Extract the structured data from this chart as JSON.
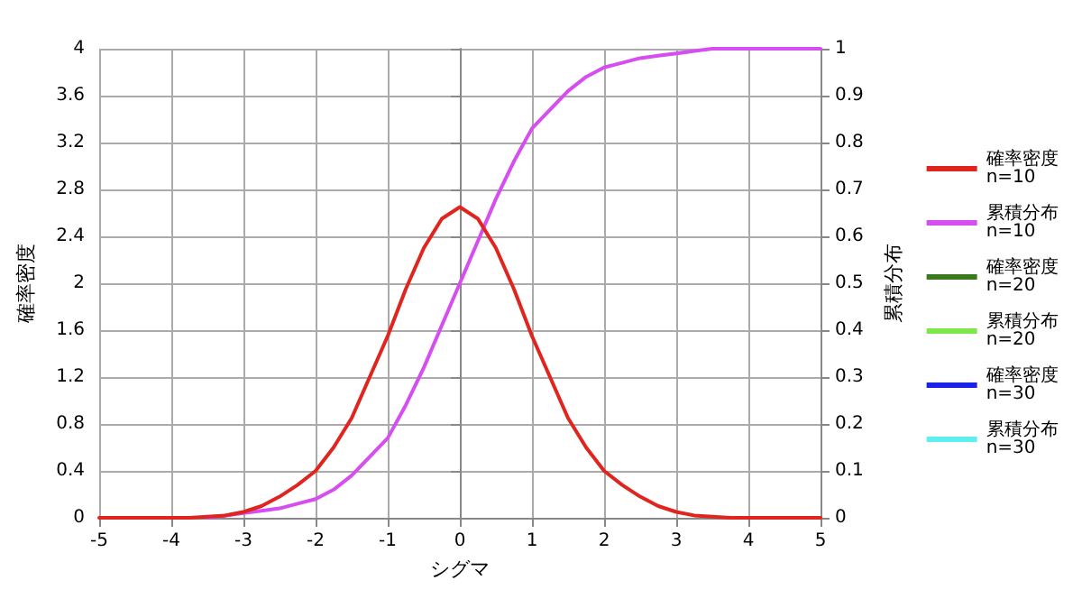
{
  "chart_data": {
    "type": "line",
    "xlabel": "シグマ",
    "ylabel": "確率密度",
    "y2label": "累積分布",
    "x": [
      -5,
      -4.75,
      -4.5,
      -4.25,
      -4,
      -3.75,
      -3.5,
      -3.25,
      -3,
      -2.75,
      -2.5,
      -2.25,
      -2,
      -1.75,
      -1.5,
      -1.25,
      -1,
      -0.75,
      -0.5,
      -0.25,
      0,
      0.25,
      0.5,
      0.75,
      1,
      1.25,
      1.5,
      1.75,
      2,
      2.25,
      2.5,
      2.75,
      3,
      3.25,
      3.5,
      3.75,
      4,
      4.25,
      4.5,
      4.75,
      5
    ],
    "series": [
      {
        "name": "確率密度 n=10",
        "color": "#e0251f",
        "values": [
          0,
          0,
          0,
          0,
          0,
          0,
          0.01,
          0.02,
          0.05,
          0.1,
          0.18,
          0.28,
          0.4,
          0.6,
          0.85,
          1.2,
          1.55,
          1.95,
          2.3,
          2.55,
          2.65,
          2.55,
          2.3,
          1.95,
          1.55,
          1.2,
          0.85,
          0.6,
          0.4,
          0.28,
          0.18,
          0.1,
          0.05,
          0.02,
          0.01,
          0,
          0,
          0,
          0,
          0,
          0
        ]
      },
      {
        "name": "累積分布 n=10",
        "color": "#d64ef0",
        "axis": "y2",
        "values": [
          null,
          null,
          null,
          null,
          null,
          null,
          0,
          0.005,
          0.01,
          0.015,
          0.02,
          0.03,
          0.04,
          0.06,
          0.09,
          0.13,
          0.17,
          0.24,
          0.32,
          0.41,
          0.5,
          0.59,
          0.68,
          0.76,
          0.83,
          0.87,
          0.91,
          0.94,
          0.96,
          0.97,
          0.98,
          0.985,
          0.99,
          0.995,
          1,
          1,
          1,
          1,
          1,
          1,
          1
        ]
      },
      {
        "name": "確率密度 n=20",
        "color": "#3a7a1e",
        "values": [
          null,
          null,
          null,
          null,
          null,
          null,
          null,
          null,
          null,
          null,
          null,
          null,
          null,
          null,
          null,
          null,
          null,
          null,
          null,
          null,
          null,
          null,
          null,
          null,
          null,
          null,
          null,
          null,
          null,
          null,
          null,
          null,
          null,
          null,
          null,
          null,
          null,
          null,
          null,
          null,
          null
        ]
      },
      {
        "name": "累積分布 n=20",
        "color": "#7ee84a",
        "axis": "y2",
        "values": [
          null,
          null,
          null,
          null,
          null,
          null,
          null,
          null,
          null,
          null,
          null,
          null,
          null,
          null,
          null,
          null,
          null,
          null,
          null,
          null,
          null,
          null,
          null,
          null,
          null,
          null,
          null,
          null,
          null,
          null,
          null,
          null,
          null,
          null,
          null,
          null,
          null,
          null,
          null,
          null,
          null
        ]
      },
      {
        "name": "確率密度 n=30",
        "color": "#1a22e8",
        "values": [
          null,
          null,
          null,
          null,
          null,
          null,
          null,
          null,
          null,
          null,
          null,
          null,
          null,
          null,
          null,
          null,
          null,
          null,
          null,
          null,
          null,
          null,
          null,
          null,
          null,
          null,
          null,
          null,
          null,
          null,
          null,
          null,
          null,
          null,
          null,
          null,
          null,
          null,
          null,
          null,
          null
        ]
      },
      {
        "name": "累積分布 n=30",
        "color": "#5ef0f0",
        "axis": "y2",
        "values": [
          null,
          null,
          null,
          null,
          null,
          null,
          null,
          null,
          null,
          null,
          null,
          null,
          null,
          null,
          null,
          null,
          null,
          null,
          null,
          null,
          null,
          null,
          null,
          null,
          null,
          null,
          null,
          null,
          null,
          null,
          null,
          null,
          null,
          null,
          null,
          null,
          null,
          null,
          null,
          null,
          null
        ]
      }
    ],
    "xlim": [
      -5,
      5
    ],
    "xticks": [
      -5,
      -4,
      -3,
      -2,
      -1,
      0,
      1,
      2,
      3,
      4,
      5
    ],
    "ylim": [
      0,
      4
    ],
    "yticks": [
      0,
      0.4,
      0.8,
      1.2,
      1.6,
      2,
      2.4,
      2.8,
      3.2,
      3.6,
      4
    ],
    "y2lim": [
      0,
      1
    ],
    "y2ticks": [
      0,
      0.1,
      0.2,
      0.3,
      0.4,
      0.5,
      0.6,
      0.7,
      0.8,
      0.9,
      1
    ],
    "grid": true,
    "legend": "right",
    "marker": "none",
    "line_style": "solid"
  }
}
